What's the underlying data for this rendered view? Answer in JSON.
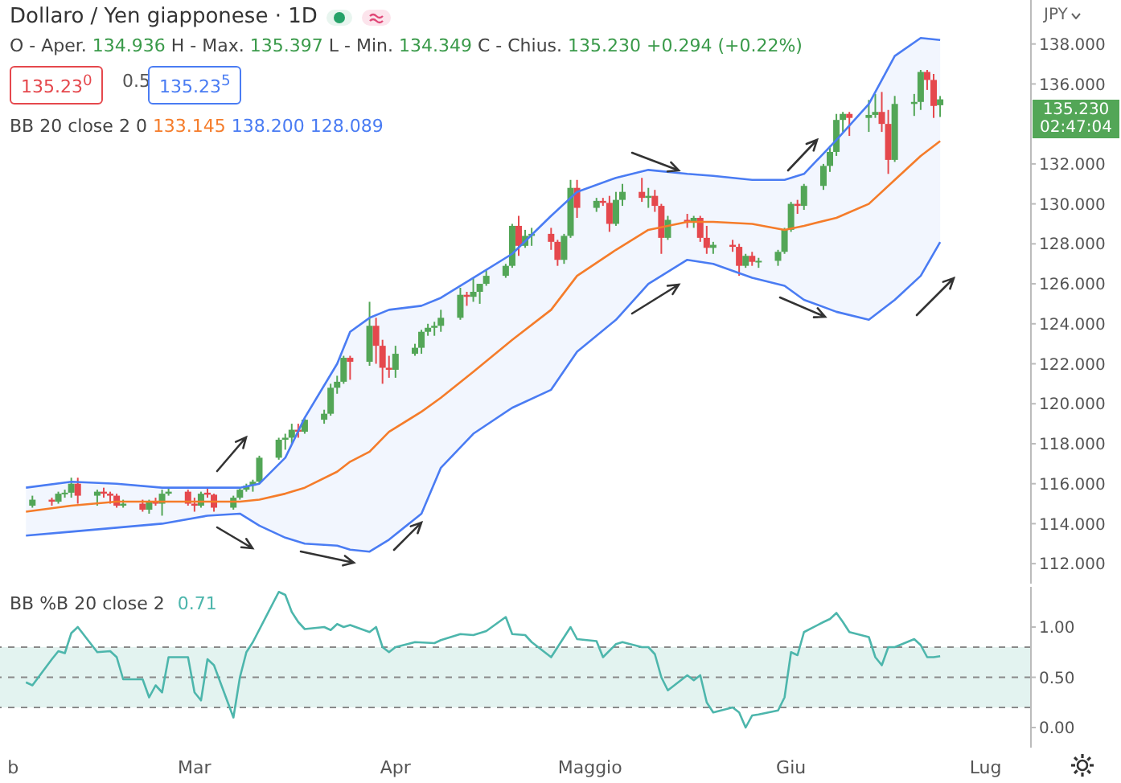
{
  "chart_data": [
    {
      "type": "candlestick",
      "title": "Dollaro / Yen giapponese · 1D",
      "ylabel": "JPY",
      "tick_labels": "y",
      "annotations": [
        "O - Aper. 134.936 H - Max. 135.397 L - Min. 134.349 C - Chius. 135.230 +0.294 (+0.22%)",
        "135.23$^{0}$",
        "0.5",
        "135.23$^{5}$",
        "BB 20 close 2 0 133.145 138.200 128.089",
        "135.230 02:47:04"
      ],
      "xlim": [
        "--01-30",
        "--07-08"
      ],
      "ylim": [
        111,
        140.2
      ],
      "yticks": [
        {
          "value": 112,
          "label": "112.000"
        },
        {
          "value": 114,
          "label": "114.000"
        },
        {
          "value": 116,
          "label": "116.000"
        },
        {
          "value": 118,
          "label": "118.000"
        },
        {
          "value": 120,
          "label": "120.000"
        },
        {
          "value": 122,
          "label": "122.000"
        },
        {
          "value": 124,
          "label": "124.000"
        },
        {
          "value": 126,
          "label": "126.000"
        },
        {
          "value": 128,
          "label": "128.000"
        },
        {
          "value": 130,
          "label": "130.000"
        },
        {
          "value": 132,
          "label": "132.000"
        },
        {
          "value": 136,
          "label": "136.000"
        },
        {
          "value": 138,
          "label": "138.000"
        }
      ],
      "x": [
        "--02-04",
        "--02-07",
        "--02-08",
        "--02-09",
        "--02-10",
        "--02-11",
        "--02-14",
        "--02-15",
        "--02-16",
        "--02-17",
        "--02-18",
        "--02-21",
        "--02-22",
        "--02-23",
        "--02-24",
        "--02-25",
        "--02-28",
        "--03-01",
        "--03-02",
        "--03-03",
        "--03-04",
        "--03-07",
        "--03-08",
        "--03-09",
        "--03-10",
        "--03-11",
        "--03-14",
        "--03-15",
        "--03-16",
        "--03-17",
        "--03-18",
        "--03-21",
        "--03-22",
        "--03-23",
        "--03-24",
        "--03-25",
        "--03-28",
        "--03-29",
        "--03-30",
        "--03-31",
        "--04-01",
        "--04-04",
        "--04-05",
        "--04-06",
        "--04-07",
        "--04-08",
        "--04-11",
        "--04-12",
        "--04-13",
        "--04-14",
        "--04-15",
        "--04-18",
        "--04-19",
        "--04-20",
        "--04-21",
        "--04-22",
        "--04-25",
        "--04-26",
        "--04-27",
        "--04-28",
        "--04-29",
        "--05-02",
        "--05-03",
        "--05-04",
        "--05-05",
        "--05-06",
        "--05-09",
        "--05-10",
        "--05-11",
        "--05-12",
        "--05-13",
        "--05-16",
        "--05-17",
        "--05-18",
        "--05-19",
        "--05-20",
        "--05-23",
        "--05-24",
        "--05-25",
        "--05-26",
        "--05-27",
        "--05-30",
        "--05-31",
        "--06-01",
        "--06-02",
        "--06-03",
        "--06-06",
        "--06-07",
        "--06-08",
        "--06-09",
        "--06-10",
        "--06-13",
        "--06-14",
        "--06-15",
        "--06-16",
        "--06-17",
        "--06-20",
        "--06-21",
        "--06-22",
        "--06-23",
        "--06-24"
      ],
      "ohlc": [
        [
          114.9,
          115.4,
          114.8,
          115.2
        ],
        [
          115.2,
          115.3,
          114.9,
          115.1
        ],
        [
          115.1,
          115.6,
          115.0,
          115.5
        ],
        [
          115.5,
          115.7,
          115.3,
          115.55
        ],
        [
          115.55,
          116.3,
          115.3,
          116.0
        ],
        [
          116.0,
          116.3,
          115.0,
          115.4
        ],
        [
          115.4,
          115.7,
          114.9,
          115.6
        ],
        [
          115.6,
          115.8,
          115.3,
          115.5
        ],
        [
          115.5,
          115.6,
          115.0,
          115.4
        ],
        [
          115.4,
          115.5,
          114.8,
          114.9
        ],
        [
          114.9,
          115.2,
          114.8,
          115.0
        ],
        [
          115.0,
          115.2,
          114.6,
          114.7
        ],
        [
          114.7,
          115.2,
          114.5,
          115.1
        ],
        [
          115.1,
          115.3,
          114.9,
          115.0
        ],
        [
          115.0,
          115.7,
          114.4,
          115.5
        ],
        [
          115.5,
          115.8,
          115.4,
          115.6
        ],
        [
          115.6,
          115.7,
          114.9,
          115.0
        ],
        [
          115.0,
          115.3,
          114.6,
          114.9
        ],
        [
          114.9,
          115.6,
          114.8,
          115.5
        ],
        [
          115.55,
          115.8,
          115.3,
          115.45
        ],
        [
          115.45,
          115.5,
          114.6,
          114.8
        ],
        [
          114.8,
          115.4,
          114.7,
          115.3
        ],
        [
          115.3,
          115.8,
          115.2,
          115.7
        ],
        [
          115.7,
          116.0,
          115.6,
          115.9
        ],
        [
          115.9,
          116.2,
          115.6,
          116.1
        ],
        [
          116.1,
          117.4,
          116.0,
          117.3
        ],
        [
          117.3,
          118.3,
          117.2,
          118.2
        ],
        [
          118.2,
          118.5,
          117.7,
          118.3
        ],
        [
          118.3,
          119.0,
          118.0,
          118.7
        ],
        [
          118.7,
          119.0,
          118.3,
          118.6
        ],
        [
          118.6,
          119.3,
          118.5,
          119.2
        ],
        [
          119.2,
          119.7,
          119.0,
          119.5
        ],
        [
          119.5,
          121.0,
          119.4,
          120.8
        ],
        [
          120.8,
          121.4,
          120.5,
          121.1
        ],
        [
          121.1,
          122.4,
          121.0,
          122.3
        ],
        [
          122.3,
          122.4,
          121.2,
          122.1
        ],
        [
          122.1,
          125.1,
          121.9,
          123.9
        ],
        [
          123.9,
          124.3,
          122.0,
          122.9
        ],
        [
          122.9,
          123.2,
          121.0,
          121.8
        ],
        [
          121.8,
          122.4,
          121.3,
          121.7
        ],
        [
          121.7,
          122.9,
          121.3,
          122.5
        ],
        [
          122.5,
          123.0,
          122.4,
          122.8
        ],
        [
          122.8,
          123.7,
          122.5,
          123.6
        ],
        [
          123.6,
          124.0,
          123.4,
          123.8
        ],
        [
          123.8,
          124.1,
          123.4,
          123.9
        ],
        [
          123.9,
          124.7,
          123.6,
          124.3
        ],
        [
          124.3,
          125.8,
          124.2,
          125.45
        ],
        [
          125.45,
          125.6,
          124.9,
          125.35
        ],
        [
          125.35,
          126.3,
          125.1,
          125.6
        ],
        [
          125.6,
          126.0,
          125.0,
          126.0
        ],
        [
          126.0,
          126.7,
          125.9,
          126.4
        ],
        [
          126.4,
          127.0,
          126.3,
          126.9
        ],
        [
          126.9,
          129.0,
          126.8,
          128.9
        ],
        [
          128.9,
          129.4,
          127.4,
          127.9
        ],
        [
          127.9,
          128.7,
          127.8,
          128.4
        ],
        [
          128.4,
          128.8,
          127.9,
          128.5
        ],
        [
          128.5,
          128.8,
          127.7,
          128.1
        ],
        [
          128.1,
          128.2,
          126.9,
          127.2
        ],
        [
          127.2,
          128.5,
          127.0,
          128.4
        ],
        [
          128.4,
          131.2,
          128.3,
          130.8
        ],
        [
          130.8,
          131.2,
          129.3,
          129.8
        ],
        [
          129.8,
          130.3,
          129.6,
          130.15
        ],
        [
          130.15,
          130.3,
          129.9,
          130.05
        ],
        [
          130.05,
          130.4,
          128.6,
          129.0
        ],
        [
          129.0,
          130.6,
          128.9,
          130.2
        ],
        [
          130.2,
          131.0,
          129.9,
          130.6
        ],
        [
          130.6,
          131.3,
          130.1,
          130.3
        ],
        [
          130.3,
          130.8,
          129.8,
          130.4
        ],
        [
          130.4,
          130.7,
          129.6,
          129.9
        ],
        [
          129.9,
          130.0,
          127.5,
          128.3
        ],
        [
          128.3,
          129.4,
          128.2,
          129.2
        ],
        [
          129.2,
          129.5,
          128.8,
          129.1
        ],
        [
          129.1,
          129.4,
          128.8,
          129.3
        ],
        [
          129.3,
          129.4,
          128.1,
          128.3
        ],
        [
          128.3,
          128.9,
          127.5,
          127.8
        ],
        [
          127.8,
          128.1,
          127.5,
          127.95
        ],
        [
          127.95,
          128.2,
          127.6,
          127.85
        ],
        [
          127.85,
          128.0,
          126.4,
          126.9
        ],
        [
          126.9,
          127.5,
          126.8,
          127.4
        ],
        [
          127.4,
          127.6,
          126.9,
          127.1
        ],
        [
          127.1,
          127.3,
          126.8,
          127.15
        ],
        [
          127.15,
          127.7,
          126.9,
          127.6
        ],
        [
          127.6,
          128.8,
          127.5,
          128.7
        ],
        [
          128.7,
          130.1,
          128.6,
          130.0
        ],
        [
          130.0,
          130.2,
          129.5,
          129.9
        ],
        [
          129.9,
          131.0,
          129.7,
          130.9
        ],
        [
          130.9,
          132.0,
          130.7,
          131.9
        ],
        [
          131.9,
          132.9,
          131.6,
          132.6
        ],
        [
          132.6,
          134.5,
          132.4,
          134.2
        ],
        [
          134.2,
          134.6,
          133.6,
          134.5
        ],
        [
          134.5,
          134.6,
          133.4,
          134.3
        ],
        [
          134.3,
          135.2,
          133.6,
          134.45
        ],
        [
          134.45,
          135.5,
          134.3,
          134.6
        ],
        [
          134.6,
          135.6,
          133.6,
          134.0
        ],
        [
          134.0,
          134.7,
          131.5,
          132.2
        ],
        [
          132.2,
          135.4,
          132.1,
          135.0
        ],
        [
          135.0,
          135.5,
          134.4,
          135.1
        ],
        [
          135.1,
          136.7,
          134.7,
          136.6
        ],
        [
          136.6,
          136.7,
          135.7,
          136.2
        ],
        [
          136.2,
          136.5,
          134.3,
          134.9
        ],
        [
          134.936,
          135.397,
          134.349,
          135.23
        ]
      ],
      "colors": [
        "#53a657",
        "#e5484d",
        "#53a657",
        "#53a657",
        "#53a657",
        "#e5484d",
        "#53a657",
        "#e5484d",
        "#e5484d",
        "#e5484d",
        "#53a657",
        "#e5484d",
        "#53a657",
        "#e5484d",
        "#53a657",
        "#53a657",
        "#e5484d",
        "#e5484d",
        "#53a657",
        "#e5484d",
        "#e5484d",
        "#53a657",
        "#53a657",
        "#53a657",
        "#53a657",
        "#53a657",
        "#53a657",
        "#53a657",
        "#53a657",
        "#e5484d",
        "#53a657",
        "#53a657",
        "#53a657",
        "#53a657",
        "#53a657",
        "#e5484d",
        "#53a657",
        "#e5484d",
        "#e5484d",
        "#e5484d",
        "#53a657",
        "#53a657",
        "#53a657",
        "#53a657",
        "#53a657",
        "#53a657",
        "#53a657",
        "#e5484d",
        "#53a657",
        "#53a657",
        "#53a657",
        "#53a657",
        "#53a657",
        "#e5484d",
        "#53a657",
        "#53a657",
        "#e5484d",
        "#e5484d",
        "#53a657",
        "#53a657",
        "#e5484d",
        "#53a657",
        "#e5484d",
        "#e5484d",
        "#53a657",
        "#53a657",
        "#e5484d",
        "#53a657",
        "#e5484d",
        "#e5484d",
        "#53a657",
        "#e5484d",
        "#53a657",
        "#e5484d",
        "#e5484d",
        "#53a657",
        "#e5484d",
        "#e5484d",
        "#53a657",
        "#e5484d",
        "#53a657",
        "#53a657",
        "#53a657",
        "#53a657",
        "#e5484d",
        "#53a657",
        "#53a657",
        "#53a657",
        "#53a657",
        "#53a657",
        "#e5484d",
        "#53a657",
        "#53a657",
        "#e5484d",
        "#e5484d",
        "#53a657",
        "#53a657",
        "#53a657",
        "#e5484d",
        "#e5484d",
        "#53a657"
      ],
      "series": [
        {
          "type": "line",
          "color": "#4a7cf3",
          "x": [
            "--02-03",
            "--02-10",
            "--02-17",
            "--02-24",
            "--03-03",
            "--03-08",
            "--03-11",
            "--03-15",
            "--03-18",
            "--03-23",
            "--03-25",
            "--03-28",
            "--03-31",
            "--04-05",
            "--04-08",
            "--04-13",
            "--04-19",
            "--04-25",
            "--04-29",
            "--05-05",
            "--05-10",
            "--05-16",
            "--05-20",
            "--05-26",
            "--05-31",
            "--06-03",
            "--06-08",
            "--06-13",
            "--06-17",
            "--06-21",
            "--06-24"
          ],
          "values": [
            115.8,
            116.1,
            116.0,
            115.8,
            115.8,
            115.8,
            116.0,
            117.3,
            119.3,
            122.0,
            123.6,
            124.3,
            124.7,
            124.9,
            125.3,
            126.3,
            127.5,
            129.4,
            130.6,
            131.3,
            131.7,
            131.5,
            131.4,
            131.2,
            131.2,
            131.5,
            133.2,
            135.0,
            137.4,
            138.3,
            138.2
          ]
        },
        {
          "type": "line",
          "color": "#f57c2a",
          "x": [
            "--02-03",
            "--02-10",
            "--02-17",
            "--02-24",
            "--03-03",
            "--03-08",
            "--03-11",
            "--03-15",
            "--03-18",
            "--03-23",
            "--03-25",
            "--03-28",
            "--03-31",
            "--04-05",
            "--04-08",
            "--04-13",
            "--04-19",
            "--04-25",
            "--04-29",
            "--05-05",
            "--05-10",
            "--05-16",
            "--05-20",
            "--05-26",
            "--05-31",
            "--06-03",
            "--06-08",
            "--06-13",
            "--06-17",
            "--06-21",
            "--06-24"
          ],
          "values": [
            114.6,
            114.9,
            115.1,
            115.1,
            115.1,
            115.1,
            115.2,
            115.5,
            115.8,
            116.6,
            117.1,
            117.6,
            118.6,
            119.6,
            120.3,
            121.6,
            123.2,
            124.7,
            126.4,
            127.7,
            128.7,
            129.1,
            129.1,
            129.0,
            128.7,
            128.9,
            129.3,
            130.0,
            131.2,
            132.4,
            133.145
          ],
          "lower": [
            113.4,
            113.6,
            113.8,
            114.0,
            114.4,
            114.5,
            113.9,
            113.3,
            113.0,
            112.9,
            112.7,
            112.6,
            113.2,
            114.5,
            116.8,
            118.5,
            119.8,
            120.7,
            122.6,
            124.2,
            126.0,
            127.2,
            127.0,
            126.3,
            125.9,
            125.2,
            124.6,
            124.2,
            125.2,
            126.4,
            128.089
          ],
          "upper": [
            115.8,
            116.1,
            116.0,
            115.8,
            115.8,
            115.8,
            116.0,
            117.3,
            119.3,
            122.0,
            123.6,
            124.3,
            124.7,
            124.9,
            125.3,
            126.3,
            127.5,
            129.4,
            130.6,
            131.3,
            131.7,
            131.5,
            131.4,
            131.2,
            131.2,
            131.5,
            133.2,
            135.0,
            137.4,
            138.3,
            138.2
          ]
        },
        {
          "type": "line",
          "color": "#4a7cf3",
          "x": [
            "--02-03",
            "--02-10",
            "--02-17",
            "--02-24",
            "--03-03",
            "--03-08",
            "--03-11",
            "--03-15",
            "--03-18",
            "--03-23",
            "--03-25",
            "--03-28",
            "--03-31",
            "--04-05",
            "--04-08",
            "--04-13",
            "--04-19",
            "--04-25",
            "--04-29",
            "--05-05",
            "--05-10",
            "--05-16",
            "--05-20",
            "--05-26",
            "--05-31",
            "--06-03",
            "--06-08",
            "--06-13",
            "--06-17",
            "--06-21",
            "--06-24"
          ],
          "values": [
            113.4,
            113.6,
            113.8,
            114.0,
            114.4,
            114.5,
            113.9,
            113.3,
            113.0,
            112.9,
            112.7,
            112.6,
            113.2,
            114.5,
            116.8,
            118.5,
            119.8,
            120.7,
            122.6,
            124.2,
            126.0,
            127.2,
            127.0,
            126.3,
            125.9,
            125.2,
            124.6,
            124.2,
            125.2,
            126.4,
            128.089
          ]
        }
      ]
    },
    {
      "type": "line",
      "title": "BB %B 20 close 2",
      "annotations": [
        "0.71"
      ],
      "color": "#4db6ac",
      "xlim": [
        "--01-30",
        "--07-08"
      ],
      "xticks": [
        {
          "value": "--02-01",
          "label": "b"
        },
        {
          "value": "--03-01",
          "label": "Mar"
        },
        {
          "value": "--04-01",
          "label": "Apr"
        },
        {
          "value": "--05-01",
          "label": "Maggio"
        },
        {
          "value": "--06-01",
          "label": "Giu"
        },
        {
          "value": "--07-01",
          "label": "Lug"
        }
      ],
      "ylim": [
        -0.2,
        1.4
      ],
      "yticks": [
        {
          "value": 0,
          "label": "0.00"
        },
        {
          "value": 0.5,
          "label": "0.50"
        },
        {
          "value": 1,
          "label": "1.00"
        }
      ],
      "ref_lines": [
        {
          "axis": "y",
          "value": 0.8,
          "line_style": "dashed",
          "color": "#8a8a8a"
        },
        {
          "axis": "y",
          "value": 0.5,
          "line_style": "dashed",
          "color": "#8a8a8a"
        },
        {
          "axis": "y",
          "value": 0.2,
          "line_style": "dashed",
          "color": "#8a8a8a"
        }
      ],
      "bands": [
        {
          "axis": "y",
          "from": 0.2,
          "to": 0.8,
          "color": "#e3f3f0"
        }
      ],
      "x": [
        "--02-03",
        "--02-04",
        "--02-07",
        "--02-08",
        "--02-09",
        "--02-10",
        "--02-11",
        "--02-14",
        "--02-16",
        "--02-17",
        "--02-18",
        "--02-21",
        "--02-22",
        "--02-23",
        "--02-24",
        "--02-25",
        "--02-28",
        "--03-01",
        "--03-02",
        "--03-03",
        "--03-04",
        "--03-07",
        "--03-08",
        "--03-09",
        "--03-10",
        "--03-14",
        "--03-15",
        "--03-16",
        "--03-17",
        "--03-18",
        "--03-21",
        "--03-22",
        "--03-23",
        "--03-24",
        "--03-25",
        "--03-28",
        "--03-29",
        "--03-30",
        "--03-31",
        "--04-01",
        "--04-04",
        "--04-07",
        "--04-08",
        "--04-11",
        "--04-13",
        "--04-15",
        "--04-18",
        "--04-19",
        "--04-21",
        "--04-22",
        "--04-25",
        "--04-26",
        "--04-28",
        "--04-29",
        "--05-02",
        "--05-03",
        "--05-05",
        "--05-06",
        "--05-09",
        "--05-10",
        "--05-11",
        "--05-12",
        "--05-13",
        "--05-16",
        "--05-17",
        "--05-18",
        "--05-19",
        "--05-20",
        "--05-23",
        "--05-24",
        "--05-25",
        "--05-26",
        "--05-27",
        "--05-30",
        "--05-31",
        "--06-01",
        "--06-02",
        "--06-03",
        "--06-06",
        "--06-07",
        "--06-08",
        "--06-09",
        "--06-10",
        "--06-13",
        "--06-14",
        "--06-15",
        "--06-16",
        "--06-17",
        "--06-20",
        "--06-21",
        "--06-22",
        "--06-23",
        "--06-24"
      ],
      "values": [
        0.45,
        0.42,
        0.68,
        0.76,
        0.74,
        0.94,
        1.0,
        0.75,
        0.76,
        0.7,
        0.48,
        0.48,
        0.3,
        0.42,
        0.35,
        0.7,
        0.7,
        0.35,
        0.27,
        0.68,
        0.62,
        0.1,
        0.5,
        0.75,
        0.85,
        1.35,
        1.32,
        1.15,
        1.05,
        0.98,
        1.0,
        0.97,
        1.03,
        1.0,
        1.02,
        0.95,
        1.0,
        0.8,
        0.75,
        0.8,
        0.85,
        0.84,
        0.87,
        0.93,
        0.92,
        0.96,
        1.1,
        0.93,
        0.92,
        0.85,
        0.7,
        0.8,
        1.0,
        0.88,
        0.86,
        0.7,
        0.83,
        0.85,
        0.8,
        0.8,
        0.73,
        0.5,
        0.37,
        0.52,
        0.47,
        0.52,
        0.25,
        0.15,
        0.2,
        0.15,
        0.0,
        0.12,
        0.13,
        0.17,
        0.3,
        0.75,
        0.72,
        0.95,
        1.05,
        1.08,
        1.14,
        1.05,
        0.95,
        0.9,
        0.7,
        0.62,
        0.8,
        0.8,
        0.88,
        0.82,
        0.7,
        0.7,
        0.71
      ]
    }
  ]
}
